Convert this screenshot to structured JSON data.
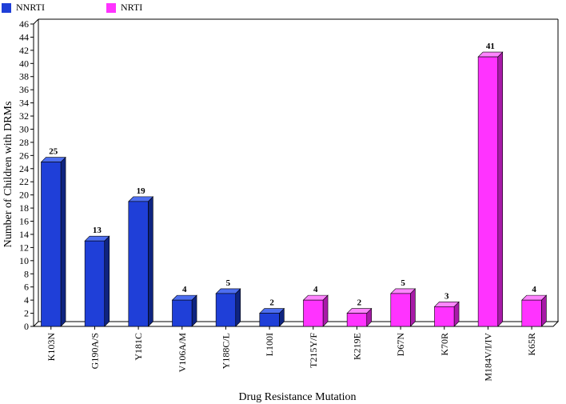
{
  "chart_data": {
    "type": "bar",
    "title": "",
    "xlabel": "Drug Resistance Mutation",
    "ylabel": "Number of Children with DRMs",
    "ylim": [
      0,
      46
    ],
    "ytick_step": 2,
    "legend_position": "top-left",
    "categories": [
      "K103N",
      "G190A/S",
      "Y181C",
      "V106A/M",
      "Y188C/L",
      "L100I",
      "T215Y/F",
      "K219E",
      "D67N",
      "K70R",
      "M184V/I/IV",
      "K65R"
    ],
    "values": [
      25,
      13,
      19,
      4,
      5,
      2,
      4,
      2,
      5,
      3,
      41,
      4
    ],
    "groups": [
      "NNRTI",
      "NNRTI",
      "NNRTI",
      "NNRTI",
      "NNRTI",
      "NNRTI",
      "NRTI",
      "NRTI",
      "NRTI",
      "NRTI",
      "NRTI",
      "NRTI"
    ],
    "series": [
      {
        "name": "NNRTI",
        "color": "#1f3fd8",
        "side_color": "#0f2480",
        "top_color": "#4d6ef0"
      },
      {
        "name": "NRTI",
        "color": "#ff33ff",
        "side_color": "#a81aa8",
        "top_color": "#ff85ff"
      }
    ]
  }
}
